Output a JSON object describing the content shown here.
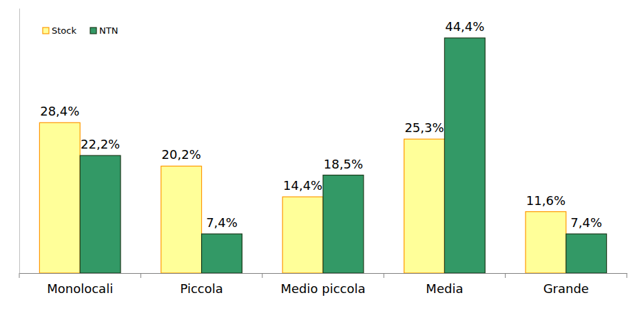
{
  "chart_data": {
    "type": "bar",
    "categories": [
      "Monolocali",
      "Piccola",
      "Medio piccola",
      "Media",
      "Grande"
    ],
    "series": [
      {
        "name": "Stock",
        "color": "#FFFF99",
        "values": [
          28.4,
          20.2,
          14.4,
          25.3,
          11.6
        ],
        "value_labels": [
          "28,4%",
          "20,2%",
          "14,4%",
          "25,3%",
          "11,6%"
        ]
      },
      {
        "name": "NTN",
        "color": "#339966",
        "values": [
          22.2,
          7.4,
          18.5,
          44.4,
          7.4
        ],
        "value_labels": [
          "22,2%",
          "7,4%",
          "18,5%",
          "44,4%",
          "7,4%"
        ]
      }
    ],
    "ylim": [
      0,
      50
    ],
    "data_labels": true,
    "tick_labels": "x",
    "legend": "top-left"
  }
}
